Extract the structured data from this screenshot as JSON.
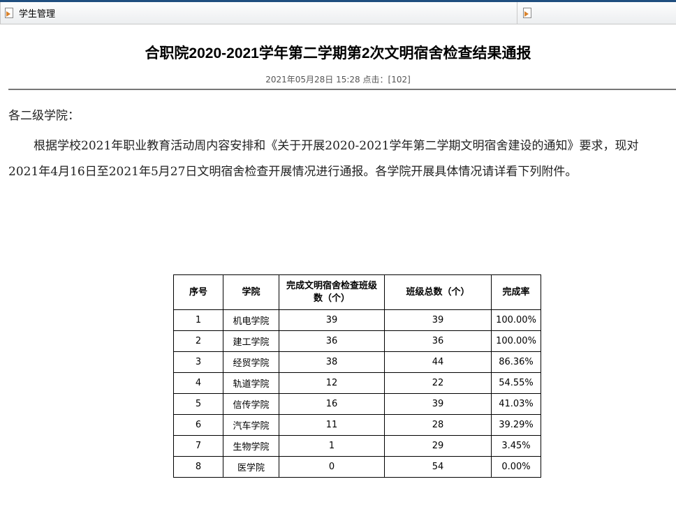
{
  "tabs": [
    {
      "label": "学生管理",
      "icon": "page-icon"
    },
    {
      "label": "",
      "icon": "page-icon"
    }
  ],
  "article": {
    "title": "合职院2020-2021学年第二学期第2次文明宿舍检查结果通报",
    "meta": "2021年05月28日 15:28  点击：[102]",
    "salutation": "各二级学院：",
    "paragraph": "根据学校2021年职业教育活动周内容安排和《关于开展2020-2021学年第二学期文明宿舍建设的通知》要求，现对2021年4月16日至2021年5月27日文明宿舍检查开展情况进行通报。各学院开展具体情况请详看下列附件。"
  },
  "table": {
    "headers": [
      "序号",
      "学院",
      "完成文明宿舍检查班级数（个）",
      "班级总数（个）",
      "完成率"
    ],
    "rows": [
      [
        "1",
        "机电学院",
        "39",
        "39",
        "100.00%"
      ],
      [
        "2",
        "建工学院",
        "36",
        "36",
        "100.00%"
      ],
      [
        "3",
        "经贸学院",
        "38",
        "44",
        "86.36%"
      ],
      [
        "4",
        "轨道学院",
        "12",
        "22",
        "54.55%"
      ],
      [
        "5",
        "信传学院",
        "16",
        "39",
        "41.03%"
      ],
      [
        "6",
        "汽车学院",
        "11",
        "28",
        "39.29%"
      ],
      [
        "7",
        "生物学院",
        "1",
        "29",
        "3.45%"
      ],
      [
        "8",
        "医学院",
        "0",
        "54",
        "0.00%"
      ]
    ]
  }
}
